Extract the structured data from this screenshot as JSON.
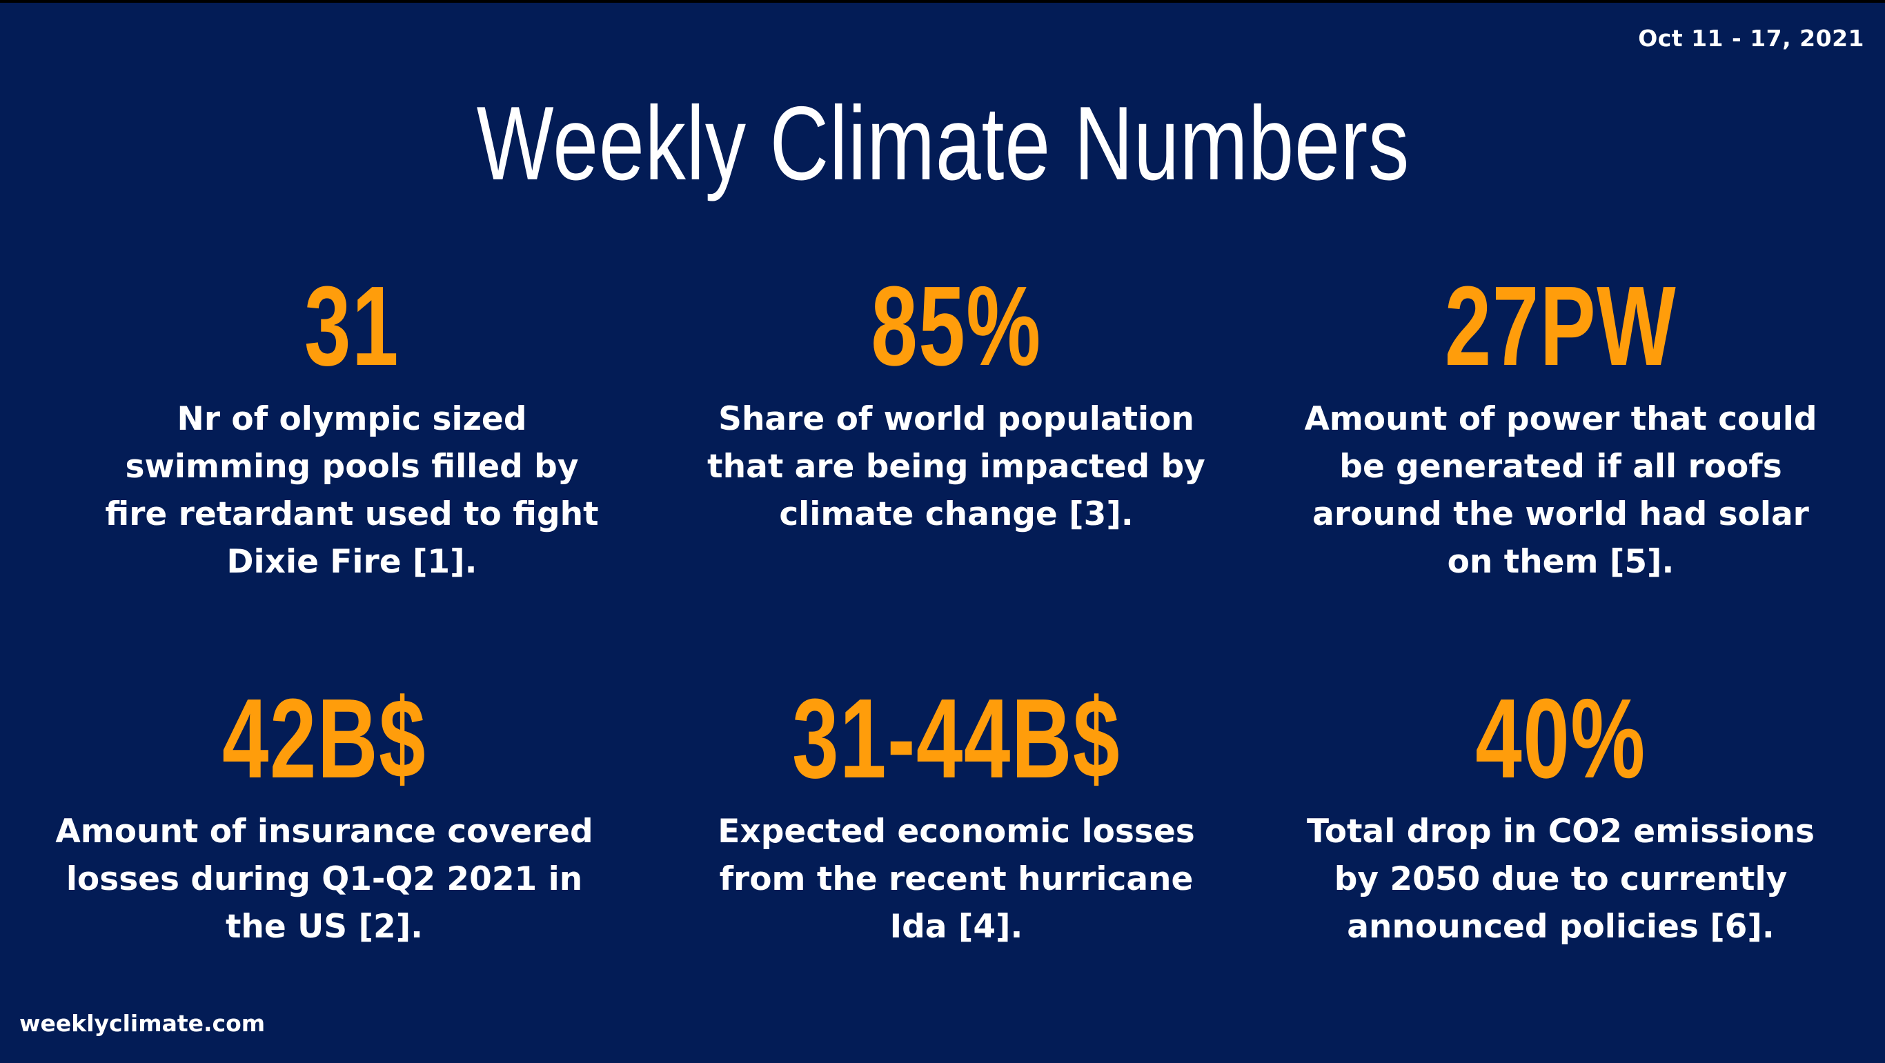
{
  "header": {
    "date_range": "Oct 11 - 17, 2021",
    "title": "Weekly Climate Numbers"
  },
  "stats": [
    {
      "value": "31",
      "description": "Nr of olympic sized swimming pools filled by fire retardant used to fight Dixie Fire [1]."
    },
    {
      "value": "85%",
      "description": "Share of world population that are being impacted by climate change [3]."
    },
    {
      "value": "27PW",
      "description": "Amount of power that could be generated if all roofs around the world had solar on them [5]."
    },
    {
      "value": "42B$",
      "description": "Amount of insurance covered losses during Q1-Q2 2021 in the US [2]."
    },
    {
      "value": "31-44B$",
      "description": "Expected economic losses from the recent hurricane Ida [4]."
    },
    {
      "value": "40%",
      "description": "Total drop in CO2 emissions by 2050 due to currently announced policies [6]."
    }
  ],
  "footer": {
    "website": "weeklyclimate.com"
  },
  "colors": {
    "background": "#031c56",
    "accent": "#ff9d0b",
    "text": "#ffffff"
  }
}
